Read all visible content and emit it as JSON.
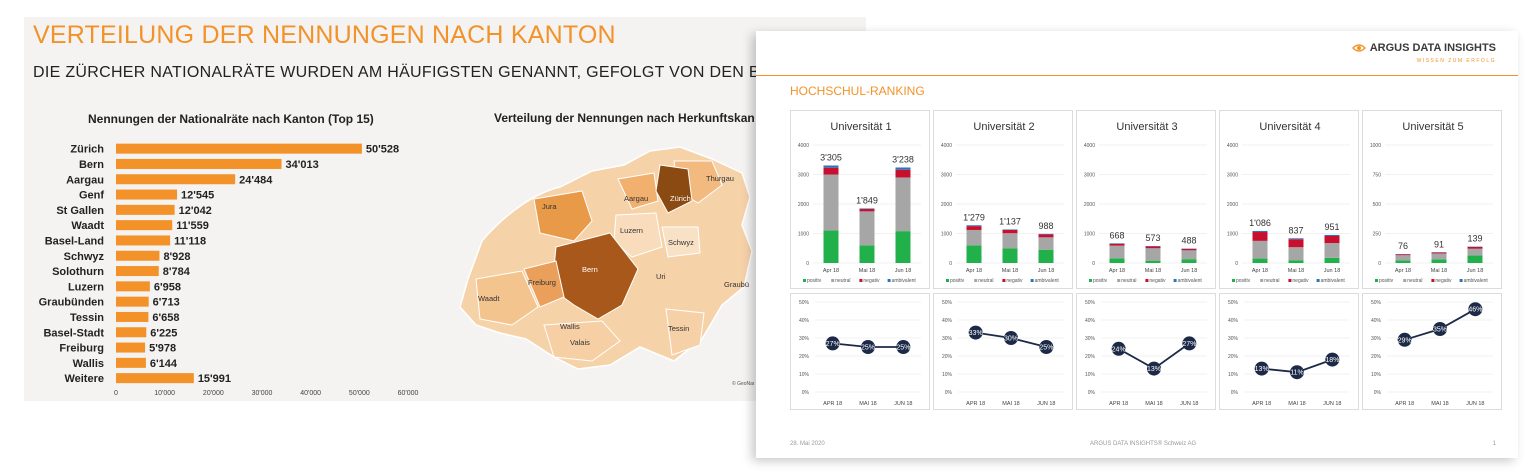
{
  "slide1": {
    "title": "VERTEILUNG DER NENNUNGEN NACH KANTON",
    "subtitle": "DIE ZÜRCHER NATIONALRÄTE WURDEN AM HÄUFIGSTEN GENANNT, GEFOLGT VON DEN BE",
    "chart_title": "Nennungen der Nationalräte nach Kanton (Top 15)",
    "map_title": "Verteilung der Nennungen nach Herkunftskan",
    "map_labels": [
      "Thurgau",
      "Zürich",
      "Aargau",
      "Jura",
      "Luzern",
      "Schwyz",
      "Bern",
      "Freiburg",
      "Uri",
      "Graubü",
      "Waadt",
      "Wallis",
      "Tessin",
      "Valais"
    ],
    "map_credit": "© GeoNam",
    "bar_color": "#f29229"
  },
  "slide2": {
    "logo": "ARGUS DATA INSIGHTS",
    "tagline": "WISSEN ZUM ERFOLG",
    "section_title": "HOCHSCHUL-RANKING",
    "footer_date": "28. Mai 2020",
    "footer_company": "ARGUS DATA INSIGHTS® Schweiz AG",
    "footer_page": "1",
    "legend": [
      "positiv",
      "neutral",
      "negativ",
      "ambivalent"
    ],
    "colors": {
      "positiv": "#22b04b",
      "neutral": "#a6a6a6",
      "negativ": "#c8102e",
      "ambivalent": "#2e75b6",
      "line": "#1c2a48",
      "accent": "#f29229"
    }
  },
  "chart_data": [
    {
      "type": "bar",
      "orientation": "horizontal",
      "title": "Nennungen der Nationalräte nach Kanton (Top 15)",
      "categories": [
        "Zürich",
        "Bern",
        "Aargau",
        "Genf",
        "St Gallen",
        "Waadt",
        "Basel-Land",
        "Schwyz",
        "Solothurn",
        "Luzern",
        "Graubünden",
        "Tessin",
        "Basel-Stadt",
        "Freiburg",
        "Wallis",
        "Weitere"
      ],
      "values": [
        50528,
        34013,
        24484,
        12545,
        12042,
        11559,
        11118,
        8928,
        8784,
        6958,
        6713,
        6658,
        6225,
        5978,
        6144,
        15991
      ],
      "value_labels": [
        "50'528",
        "34'013",
        "24'484",
        "12'545",
        "12'042",
        "11'559",
        "11'118",
        "8'928",
        "8'784",
        "6'958",
        "6'713",
        "6'658",
        "6'225",
        "5'978",
        "6'144",
        "15'991"
      ],
      "xlim": [
        0,
        60000
      ],
      "xticks": [
        "0",
        "10'000",
        "20'000",
        "30'000",
        "40'000",
        "50'000",
        "60'000"
      ]
    },
    {
      "type": "bar",
      "stacked": true,
      "title": "Universität 1",
      "categories": [
        "Apr 18",
        "Mai 18",
        "Jun 18"
      ],
      "totals": [
        "3'305",
        "1'849",
        "3'238"
      ],
      "ylim": [
        0,
        4000
      ],
      "yticks": [
        "0",
        "1000",
        "2000",
        "3000",
        "4000"
      ],
      "series": [
        {
          "name": "positiv",
          "values": [
            1100,
            600,
            1080
          ]
        },
        {
          "name": "neutral",
          "values": [
            1900,
            1150,
            1820
          ]
        },
        {
          "name": "negativ",
          "values": [
            230,
            80,
            260
          ]
        },
        {
          "name": "ambivalent",
          "values": [
            75,
            19,
            78
          ]
        }
      ]
    },
    {
      "type": "bar",
      "stacked": true,
      "title": "Universität 2",
      "categories": [
        "Apr 18",
        "Mai 18",
        "Jun 18"
      ],
      "totals": [
        "1'279",
        "1'137",
        "988"
      ],
      "ylim": [
        0,
        4000
      ],
      "yticks": [
        "0",
        "1000",
        "2000",
        "3000",
        "4000"
      ],
      "series": [
        {
          "name": "positiv",
          "values": [
            600,
            500,
            450
          ]
        },
        {
          "name": "neutral",
          "values": [
            520,
            510,
            420
          ]
        },
        {
          "name": "negativ",
          "values": [
            130,
            110,
            100
          ]
        },
        {
          "name": "ambivalent",
          "values": [
            29,
            17,
            18
          ]
        }
      ]
    },
    {
      "type": "bar",
      "stacked": true,
      "title": "Universität 3",
      "categories": [
        "Apr 18",
        "Mai 18",
        "Jun 18"
      ],
      "totals": [
        "668",
        "573",
        "488"
      ],
      "ylim": [
        0,
        4000
      ],
      "yticks": [
        "0",
        "1000",
        "2000",
        "3000",
        "4000"
      ],
      "series": [
        {
          "name": "positiv",
          "values": [
            160,
            80,
            130
          ]
        },
        {
          "name": "neutral",
          "values": [
            430,
            420,
            300
          ]
        },
        {
          "name": "negativ",
          "values": [
            60,
            60,
            45
          ]
        },
        {
          "name": "ambivalent",
          "values": [
            18,
            13,
            13
          ]
        }
      ]
    },
    {
      "type": "bar",
      "stacked": true,
      "title": "Universität 4",
      "categories": [
        "Apr 18",
        "Mai 18",
        "Jun 18"
      ],
      "totals": [
        "1'086",
        "837",
        "951"
      ],
      "ylim": [
        0,
        4000
      ],
      "yticks": [
        "0",
        "1000",
        "2000",
        "3000",
        "4000"
      ],
      "series": [
        {
          "name": "positiv",
          "values": [
            150,
            95,
            175
          ]
        },
        {
          "name": "neutral",
          "values": [
            600,
            440,
            500
          ]
        },
        {
          "name": "negativ",
          "values": [
            300,
            270,
            240
          ]
        },
        {
          "name": "ambivalent",
          "values": [
            36,
            32,
            36
          ]
        }
      ]
    },
    {
      "type": "bar",
      "stacked": true,
      "title": "Universität 5",
      "categories": [
        "Apr 18",
        "Mai 18",
        "Jun 18"
      ],
      "totals": [
        "76",
        "91",
        "139"
      ],
      "ylim": [
        0,
        1000
      ],
      "yticks": [
        "0",
        "250",
        "500",
        "750",
        "1000"
      ],
      "series": [
        {
          "name": "positiv",
          "values": [
            22,
            31,
            65
          ]
        },
        {
          "name": "neutral",
          "values": [
            44,
            50,
            56
          ]
        },
        {
          "name": "negativ",
          "values": [
            8,
            8,
            15
          ]
        },
        {
          "name": "ambivalent",
          "values": [
            2,
            2,
            3
          ]
        }
      ]
    },
    {
      "type": "line",
      "categories": [
        "APR 18",
        "MAI 18",
        "JUN 18"
      ],
      "values": [
        27,
        25,
        25
      ],
      "labels": [
        "27%",
        "25%",
        "25%"
      ],
      "ylim": [
        0,
        50
      ],
      "yticks": [
        "0%",
        "10%",
        "20%",
        "30%",
        "40%",
        "50%"
      ]
    },
    {
      "type": "line",
      "categories": [
        "APR 18",
        "MAI 18",
        "JUN 18"
      ],
      "values": [
        33,
        30,
        25
      ],
      "labels": [
        "33%",
        "30%",
        "25%"
      ],
      "ylim": [
        0,
        50
      ],
      "yticks": [
        "0%",
        "10%",
        "20%",
        "30%",
        "40%",
        "50%"
      ]
    },
    {
      "type": "line",
      "categories": [
        "APR 18",
        "MAI 18",
        "JUN 18"
      ],
      "values": [
        24,
        13,
        27
      ],
      "labels": [
        "24%",
        "13%",
        "27%"
      ],
      "ylim": [
        0,
        50
      ],
      "yticks": [
        "0%",
        "10%",
        "20%",
        "30%",
        "40%",
        "50%"
      ]
    },
    {
      "type": "line",
      "categories": [
        "APR 18",
        "MAI 18",
        "JUN 18"
      ],
      "values": [
        13,
        11,
        18
      ],
      "labels": [
        "13%",
        "11%",
        "18%"
      ],
      "ylim": [
        0,
        50
      ],
      "yticks": [
        "0%",
        "10%",
        "20%",
        "30%",
        "40%",
        "50%"
      ]
    },
    {
      "type": "line",
      "categories": [
        "APR 18",
        "MAI 18",
        "JUN 18"
      ],
      "values": [
        29,
        35,
        46
      ],
      "labels": [
        "29%",
        "35%",
        "46%"
      ],
      "ylim": [
        0,
        50
      ],
      "yticks": [
        "0%",
        "10%",
        "20%",
        "30%",
        "40%",
        "50%"
      ]
    }
  ]
}
